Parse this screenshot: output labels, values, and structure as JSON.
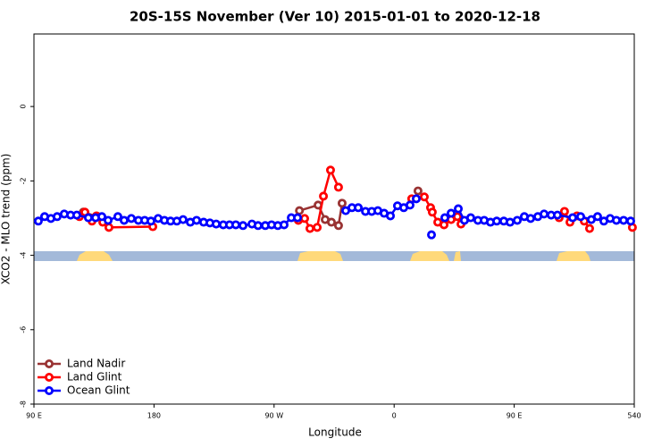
{
  "chart_data": {
    "type": "line",
    "title": "20S-15S November (Ver 10)   2015-01-01 to 2020-12-18",
    "x_label": "Longitude",
    "y_label": "XCO2 - MLO trend (ppm)",
    "xlim": [
      90,
      540
    ],
    "ylim": [
      -8,
      1.95
    ],
    "xticks": [
      {
        "value": 90,
        "label": "90 E"
      },
      180,
      {
        "value": 270,
        "label": "90 W"
      },
      {
        "value": 360,
        "label": "0"
      },
      {
        "value": 450,
        "label": "90 E"
      },
      540
    ],
    "yticks": [
      0,
      -2,
      -4,
      -6,
      -8
    ],
    "legend": "bottom-left",
    "series": [
      {
        "name": "Land Nadir",
        "color": "#993333",
        "x": [
          127.0,
          137.5,
          null,
          289.0,
          303.0,
          308.3,
          313.0,
          318.3,
          321.0,
          null,
          377.9
        ],
        "values": [
          -2.84,
          -2.96,
          null,
          -2.8,
          -2.65,
          -3.04,
          -3.11,
          -3.2,
          -2.6,
          null,
          -2.27
        ]
      },
      {
        "name": "Land Glint",
        "color": "#ff0000",
        "x": [
          124.1,
          128.2,
          133.5,
          136.9,
          141.6,
          146.2,
          179.1,
          null,
          288.2,
          292.9,
          296.9,
          302.3,
          307.0,
          312.3,
          318.3,
          null,
          373.2,
          382.6,
          387.3,
          388.6,
          392.7,
          397.4,
          402.7,
          407.4,
          410.1,
          null,
          483.7,
          487.7,
          491.8,
          497.1,
          502.5,
          506.5,
          null,
          538.6
        ],
        "values": [
          -2.96,
          -2.84,
          -3.08,
          -2.94,
          -3.11,
          -3.25,
          -3.23,
          null,
          -3.06,
          -3.01,
          -3.28,
          -3.25,
          -2.41,
          -1.71,
          -2.17,
          null,
          -2.48,
          -2.43,
          -2.72,
          -2.84,
          -3.11,
          -3.18,
          -3.04,
          -2.96,
          -3.16,
          null,
          -2.99,
          -2.82,
          -3.11,
          -2.94,
          -3.08,
          -3.28,
          null,
          -3.25
        ]
      },
      {
        "name": "Ocean Glint",
        "color": "#0000ff",
        "x": [
          93.3,
          98.0,
          102.7,
          107.4,
          112.7,
          117.5,
          122.1,
          130.8,
          136.2,
          140.9,
          145.6,
          152.9,
          157.6,
          163.0,
          168.3,
          173.0,
          177.7,
          183.1,
          187.8,
          192.4,
          197.1,
          201.8,
          207.2,
          211.9,
          217.2,
          221.9,
          226.6,
          231.9,
          236.6,
          241.3,
          246.7,
          253.4,
          258.0,
          263.4,
          268.1,
          272.8,
          277.5,
          282.9,
          287.6,
          null,
          323.7,
          328.4,
          333.1,
          338.5,
          343.2,
          347.8,
          352.5,
          357.2,
          362.5,
          367.2,
          371.9,
          376.6,
          null,
          388.0,
          null,
          398.0,
          402.7,
          408.1,
          412.7,
          417.4,
          422.8,
          427.5,
          432.2,
          436.9,
          442.2,
          446.9,
          452.3,
          457.6,
          462.3,
          467.7,
          472.4,
          477.7,
          482.4,
          493.8,
          499.8,
          507.8,
          512.5,
          517.2,
          521.9,
          526.6,
          532.0,
          537.3
        ],
        "values": [
          -3.08,
          -2.96,
          -3.01,
          -2.96,
          -2.89,
          -2.92,
          -2.92,
          -2.99,
          -2.99,
          -2.96,
          -3.06,
          -2.96,
          -3.06,
          -3.01,
          -3.06,
          -3.06,
          -3.08,
          -3.01,
          -3.06,
          -3.08,
          -3.08,
          -3.04,
          -3.11,
          -3.06,
          -3.11,
          -3.13,
          -3.16,
          -3.18,
          -3.18,
          -3.18,
          -3.2,
          -3.16,
          -3.2,
          -3.2,
          -3.18,
          -3.2,
          -3.18,
          -2.99,
          -2.99,
          null,
          -2.8,
          -2.72,
          -2.72,
          -2.82,
          -2.82,
          -2.8,
          -2.87,
          -2.94,
          -2.67,
          -2.72,
          -2.65,
          -2.48,
          null,
          -3.45,
          null,
          -2.99,
          -2.87,
          -2.75,
          -3.06,
          -2.99,
          -3.06,
          -3.06,
          -3.11,
          -3.08,
          -3.08,
          -3.11,
          -3.06,
          -2.96,
          -3.01,
          -2.96,
          -2.89,
          -2.92,
          -2.92,
          -2.99,
          -2.96,
          -3.04,
          -2.96,
          -3.08,
          -3.01,
          -3.06,
          -3.06,
          -3.08
        ]
      }
    ]
  }
}
